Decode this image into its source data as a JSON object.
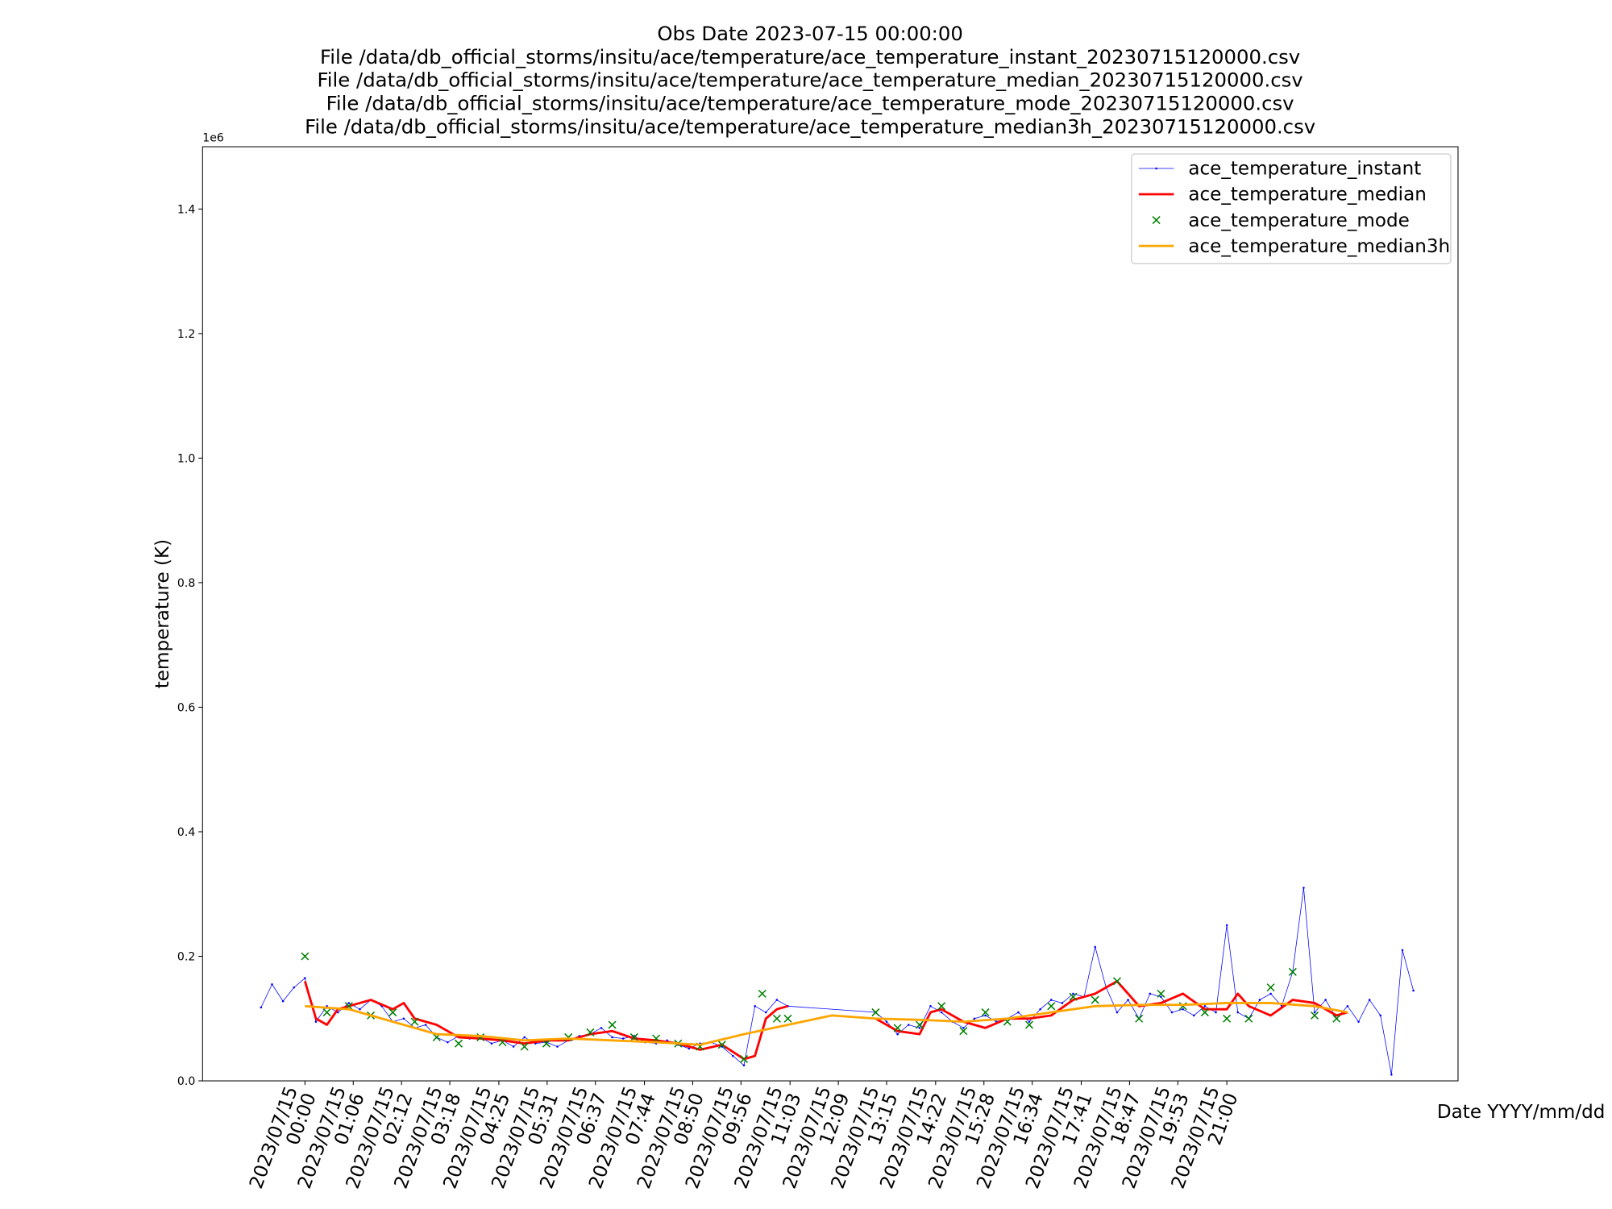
{
  "chart_data": {
    "type": "line",
    "title": [
      "Obs Date 2023-07-15 00:00:00",
      "File /data/db_official_storms/insitu/ace/temperature/ace_temperature_instant_20230715120000.csv",
      "File /data/db_official_storms/insitu/ace/temperature/ace_temperature_median_20230715120000.csv",
      "File /data/db_official_storms/insitu/ace/temperature/ace_temperature_mode_20230715120000.csv",
      "File /data/db_official_storms/insitu/ace/temperature/ace_temperature_median3h_20230715120000.csv"
    ],
    "xlabel": "Date YYYY/mm/dd",
    "ylabel": "temperature (K)",
    "y_offset_label": "1e6",
    "xlim": [
      "2023-07-14T21:40",
      "2023-07-16T02:16"
    ],
    "ylim": [
      0,
      1500000
    ],
    "yticks": [
      {
        "value": 0,
        "label": "0.0"
      },
      {
        "value": 200000,
        "label": "0.2"
      },
      {
        "value": 400000,
        "label": "0.4"
      },
      {
        "value": 600000,
        "label": "0.6"
      },
      {
        "value": 800000,
        "label": "0.8"
      },
      {
        "value": 1000000,
        "label": "1.0"
      },
      {
        "value": 1200000,
        "label": "1.2"
      },
      {
        "value": 1400000,
        "label": "1.4"
      }
    ],
    "xticks": [
      {
        "value": "2023-07-15T00:00",
        "label": "2023/07/15 00:00"
      },
      {
        "value": "2023-07-15T01:06",
        "label": "2023/07/15 01:06"
      },
      {
        "value": "2023-07-15T02:12",
        "label": "2023/07/15 02:12"
      },
      {
        "value": "2023-07-15T03:18",
        "label": "2023/07/15 03:18"
      },
      {
        "value": "2023-07-15T04:25",
        "label": "2023/07/15 04:25"
      },
      {
        "value": "2023-07-15T05:31",
        "label": "2023/07/15 05:31"
      },
      {
        "value": "2023-07-15T06:37",
        "label": "2023/07/15 06:37"
      },
      {
        "value": "2023-07-15T07:44",
        "label": "2023/07/15 07:44"
      },
      {
        "value": "2023-07-15T08:50",
        "label": "2023/07/15 08:50"
      },
      {
        "value": "2023-07-15T09:56",
        "label": "2023/07/15 09:56"
      },
      {
        "value": "2023-07-15T11:03",
        "label": "2023/07/15 11:03"
      },
      {
        "value": "2023-07-15T12:09",
        "label": "2023/07/15 12:09"
      },
      {
        "value": "2023-07-15T13:15",
        "label": "2023/07/15 13:15"
      },
      {
        "value": "2023-07-15T14:22",
        "label": "2023/07/15 14:22"
      },
      {
        "value": "2023-07-15T15:28",
        "label": "2023/07/15 15:28"
      },
      {
        "value": "2023-07-15T16:34",
        "label": "2023/07/15 16:34"
      },
      {
        "value": "2023-07-15T17:41",
        "label": "2023/07/15 17:41"
      },
      {
        "value": "2023-07-15T18:47",
        "label": "2023/07/15 18:47"
      },
      {
        "value": "2023-07-15T19:53",
        "label": "2023/07/15 19:53"
      },
      {
        "value": "2023-07-15T21:00",
        "label": "2023/07/15 21:00"
      }
    ],
    "legend": "upper right",
    "series": [
      {
        "name": "ace_temperature_instant",
        "color": "#0000ff",
        "line_width": 0.6,
        "marker": ".",
        "x": [
          "2023-07-14T23:00",
          "2023-07-14T23:15",
          "2023-07-14T23:30",
          "2023-07-14T23:45",
          "2023-07-15T00:00",
          "2023-07-15T00:15",
          "2023-07-15T00:30",
          "2023-07-15T00:45",
          "2023-07-15T01:00",
          "2023-07-15T01:15",
          "2023-07-15T01:30",
          "2023-07-15T01:45",
          "2023-07-15T02:00",
          "2023-07-15T02:15",
          "2023-07-15T02:30",
          "2023-07-15T02:45",
          "2023-07-15T03:00",
          "2023-07-15T03:15",
          "2023-07-15T03:30",
          "2023-07-15T03:45",
          "2023-07-15T04:00",
          "2023-07-15T04:15",
          "2023-07-15T04:30",
          "2023-07-15T04:45",
          "2023-07-15T05:00",
          "2023-07-15T05:15",
          "2023-07-15T05:30",
          "2023-07-15T05:45",
          "2023-07-15T06:00",
          "2023-07-15T06:15",
          "2023-07-15T06:30",
          "2023-07-15T06:45",
          "2023-07-15T07:00",
          "2023-07-15T07:15",
          "2023-07-15T07:30",
          "2023-07-15T07:45",
          "2023-07-15T08:00",
          "2023-07-15T08:15",
          "2023-07-15T08:30",
          "2023-07-15T08:45",
          "2023-07-15T09:00",
          "2023-07-15T09:15",
          "2023-07-15T09:30",
          "2023-07-15T09:45",
          "2023-07-15T10:00",
          "2023-07-15T10:15",
          "2023-07-15T10:30",
          "2023-07-15T10:45",
          "2023-07-15T11:00",
          "2023-07-15T13:00",
          "2023-07-15T13:15",
          "2023-07-15T13:30",
          "2023-07-15T13:45",
          "2023-07-15T14:00",
          "2023-07-15T14:15",
          "2023-07-15T14:30",
          "2023-07-15T14:45",
          "2023-07-15T15:00",
          "2023-07-15T15:15",
          "2023-07-15T15:30",
          "2023-07-15T15:45",
          "2023-07-15T16:00",
          "2023-07-15T16:15",
          "2023-07-15T16:30",
          "2023-07-15T16:45",
          "2023-07-15T17:00",
          "2023-07-15T17:15",
          "2023-07-15T17:30",
          "2023-07-15T17:45",
          "2023-07-15T18:00",
          "2023-07-15T18:15",
          "2023-07-15T18:30",
          "2023-07-15T18:45",
          "2023-07-15T19:00",
          "2023-07-15T19:15",
          "2023-07-15T19:30",
          "2023-07-15T19:45",
          "2023-07-15T20:00",
          "2023-07-15T20:15",
          "2023-07-15T20:30",
          "2023-07-15T20:45",
          "2023-07-15T21:00",
          "2023-07-15T21:15",
          "2023-07-15T21:30",
          "2023-07-15T21:45",
          "2023-07-15T22:00",
          "2023-07-15T22:15",
          "2023-07-15T22:30",
          "2023-07-15T22:45",
          "2023-07-15T23:00",
          "2023-07-15T23:15",
          "2023-07-15T23:30",
          "2023-07-15T23:45",
          "2023-07-16T00:00",
          "2023-07-16T00:15",
          "2023-07-16T00:30",
          "2023-07-16T00:45",
          "2023-07-16T01:00",
          "2023-07-16T01:15"
        ],
        "values": [
          118000,
          155000,
          128000,
          150000,
          165000,
          95000,
          120000,
          110000,
          125000,
          115000,
          130000,
          120000,
          95000,
          100000,
          85000,
          90000,
          70000,
          62000,
          72000,
          68000,
          70000,
          60000,
          65000,
          55000,
          70000,
          60000,
          62000,
          55000,
          65000,
          72000,
          75000,
          85000,
          70000,
          68000,
          72000,
          62000,
          60000,
          65000,
          58000,
          52000,
          60000,
          62000,
          55000,
          40000,
          25000,
          120000,
          110000,
          130000,
          120000,
          110000,
          95000,
          75000,
          90000,
          85000,
          120000,
          110000,
          95000,
          85000,
          100000,
          105000,
          95000,
          100000,
          110000,
          95000,
          115000,
          130000,
          125000,
          140000,
          135000,
          215000,
          150000,
          110000,
          130000,
          100000,
          140000,
          135000,
          110000,
          115000,
          105000,
          120000,
          110000,
          250000,
          110000,
          100000,
          130000,
          140000,
          120000,
          175000,
          310000,
          110000,
          130000,
          100000,
          120000,
          95000,
          130000,
          105000,
          10000,
          210000,
          145000
        ]
      },
      {
        "name": "ace_temperature_median",
        "color": "#ff0000",
        "line_width": 2.2,
        "x": [
          "2023-07-15T00:00",
          "2023-07-15T00:15",
          "2023-07-15T00:30",
          "2023-07-15T00:45",
          "2023-07-15T01:00",
          "2023-07-15T01:30",
          "2023-07-15T02:00",
          "2023-07-15T02:15",
          "2023-07-15T02:30",
          "2023-07-15T03:00",
          "2023-07-15T03:30",
          "2023-07-15T04:00",
          "2023-07-15T04:30",
          "2023-07-15T05:00",
          "2023-07-15T05:30",
          "2023-07-15T06:00",
          "2023-07-15T06:30",
          "2023-07-15T07:00",
          "2023-07-15T07:30",
          "2023-07-15T08:00",
          "2023-07-15T08:30",
          "2023-07-15T09:00",
          "2023-07-15T09:30",
          "2023-07-15T10:00",
          "2023-07-15T10:15",
          "2023-07-15T10:30",
          "2023-07-15T10:45",
          "2023-07-15T11:00",
          "2023-07-15T12:00",
          "2023-07-15T13:00",
          "2023-07-15T13:30",
          "2023-07-15T14:00",
          "2023-07-15T14:15",
          "2023-07-15T14:30",
          "2023-07-15T15:00",
          "2023-07-15T15:30",
          "2023-07-15T16:00",
          "2023-07-15T16:30",
          "2023-07-15T17:00",
          "2023-07-15T17:30",
          "2023-07-15T18:00",
          "2023-07-15T18:30",
          "2023-07-15T19:00",
          "2023-07-15T19:30",
          "2023-07-15T20:00",
          "2023-07-15T20:30",
          "2023-07-15T21:00",
          "2023-07-15T21:15",
          "2023-07-15T21:30",
          "2023-07-15T22:00",
          "2023-07-15T22:30",
          "2023-07-15T23:00",
          "2023-07-15T23:30",
          "2023-07-15T23:45"
        ],
        "values": [
          160000,
          100000,
          90000,
          115000,
          120000,
          130000,
          115000,
          125000,
          100000,
          90000,
          70000,
          68000,
          65000,
          60000,
          65000,
          65000,
          75000,
          80000,
          68000,
          65000,
          60000,
          50000,
          58000,
          35000,
          40000,
          100000,
          115000,
          120000,
          null,
          100000,
          80000,
          75000,
          110000,
          115000,
          95000,
          85000,
          100000,
          100000,
          105000,
          130000,
          140000,
          160000,
          120000,
          125000,
          140000,
          115000,
          115000,
          140000,
          120000,
          105000,
          130000,
          125000,
          105000,
          110000
        ]
      },
      {
        "name": "ace_temperature_mode",
        "color": "#008000",
        "line_width": 0,
        "marker": "x",
        "x": [
          "2023-07-15T00:00",
          "2023-07-15T00:30",
          "2023-07-15T01:00",
          "2023-07-15T01:30",
          "2023-07-15T02:00",
          "2023-07-15T02:30",
          "2023-07-15T03:00",
          "2023-07-15T03:30",
          "2023-07-15T04:00",
          "2023-07-15T04:30",
          "2023-07-15T05:00",
          "2023-07-15T05:30",
          "2023-07-15T06:00",
          "2023-07-15T06:30",
          "2023-07-15T07:00",
          "2023-07-15T07:30",
          "2023-07-15T08:00",
          "2023-07-15T08:30",
          "2023-07-15T09:00",
          "2023-07-15T09:30",
          "2023-07-15T10:00",
          "2023-07-15T10:25",
          "2023-07-15T10:45",
          "2023-07-15T11:00",
          "2023-07-15T13:00",
          "2023-07-15T13:30",
          "2023-07-15T14:00",
          "2023-07-15T14:30",
          "2023-07-15T15:00",
          "2023-07-15T15:30",
          "2023-07-15T16:00",
          "2023-07-15T16:30",
          "2023-07-15T17:00",
          "2023-07-15T17:30",
          "2023-07-15T18:00",
          "2023-07-15T18:30",
          "2023-07-15T19:00",
          "2023-07-15T19:30",
          "2023-07-15T20:00",
          "2023-07-15T20:30",
          "2023-07-15T21:00",
          "2023-07-15T21:30",
          "2023-07-15T22:00",
          "2023-07-15T22:30",
          "2023-07-15T23:00",
          "2023-07-15T23:30"
        ],
        "values": [
          200000,
          110000,
          120000,
          105000,
          110000,
          95000,
          70000,
          60000,
          70000,
          62000,
          55000,
          60000,
          70000,
          78000,
          90000,
          70000,
          68000,
          60000,
          55000,
          58000,
          35000,
          140000,
          100000,
          100000,
          110000,
          85000,
          90000,
          120000,
          80000,
          110000,
          95000,
          90000,
          120000,
          135000,
          130000,
          160000,
          100000,
          140000,
          120000,
          110000,
          100000,
          100000,
          150000,
          175000,
          105000,
          100000
        ]
      },
      {
        "name": "ace_temperature_median3h",
        "color": "#ffa500",
        "line_width": 2.2,
        "x": [
          "2023-07-15T00:00",
          "2023-07-15T01:00",
          "2023-07-15T02:00",
          "2023-07-15T03:00",
          "2023-07-15T04:00",
          "2023-07-15T05:00",
          "2023-07-15T06:00",
          "2023-07-15T07:00",
          "2023-07-15T08:00",
          "2023-07-15T09:00",
          "2023-07-15T10:00",
          "2023-07-15T11:00",
          "2023-07-15T12:00",
          "2023-07-15T13:00",
          "2023-07-15T14:00",
          "2023-07-15T15:00",
          "2023-07-15T16:00",
          "2023-07-15T17:00",
          "2023-07-15T18:00",
          "2023-07-15T19:00",
          "2023-07-15T20:00",
          "2023-07-15T21:00",
          "2023-07-15T22:00",
          "2023-07-15T23:00",
          "2023-07-15T23:45"
        ],
        "values": [
          120000,
          115000,
          95000,
          75000,
          72000,
          65000,
          68000,
          65000,
          62000,
          58000,
          75000,
          90000,
          105000,
          100000,
          98000,
          95000,
          100000,
          110000,
          120000,
          122000,
          122000,
          125000,
          125000,
          120000,
          110000
        ]
      }
    ]
  }
}
